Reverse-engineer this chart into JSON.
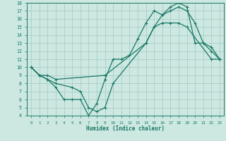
{
  "xlabel": "Humidex (Indice chaleur)",
  "background_color": "#cce8e0",
  "grid_color": "#aacccc",
  "line_color": "#1a7868",
  "xlim": [
    -0.5,
    23.5
  ],
  "ylim": [
    4,
    18
  ],
  "xticks": [
    0,
    1,
    2,
    3,
    4,
    5,
    6,
    7,
    8,
    9,
    10,
    11,
    12,
    13,
    14,
    15,
    16,
    17,
    18,
    19,
    20,
    21,
    22,
    23
  ],
  "yticks": [
    4,
    5,
    6,
    7,
    8,
    9,
    10,
    11,
    12,
    13,
    14,
    15,
    16,
    17,
    18
  ],
  "line1_x": [
    0,
    1,
    2,
    3,
    9,
    14,
    15,
    16,
    17,
    18,
    19,
    22,
    23
  ],
  "line1_y": [
    10,
    9,
    9,
    8.5,
    9,
    13,
    15,
    15.5,
    15.5,
    15.5,
    15,
    11,
    11
  ],
  "line2_x": [
    0,
    1,
    2,
    3,
    4,
    5,
    6,
    7,
    8,
    9,
    10,
    11,
    12,
    13,
    14,
    15,
    16,
    17,
    18,
    19,
    20,
    21,
    22,
    23
  ],
  "line2_y": [
    10,
    9,
    8.5,
    7.5,
    6,
    6,
    6,
    4,
    5.5,
    8.5,
    11,
    11,
    11.5,
    13.5,
    15.5,
    17,
    16.5,
    17.5,
    18,
    17.5,
    13,
    13,
    12.5,
    11
  ],
  "line3_x": [
    0,
    1,
    2,
    3,
    5,
    6,
    7,
    8,
    9,
    10,
    14,
    15,
    16,
    17,
    18,
    19,
    20,
    21,
    22,
    23
  ],
  "line3_y": [
    10,
    9,
    8.5,
    8,
    7.5,
    7,
    5,
    4.5,
    5,
    8,
    13,
    15,
    16.5,
    17,
    17.5,
    17,
    15.5,
    13,
    12,
    11
  ]
}
